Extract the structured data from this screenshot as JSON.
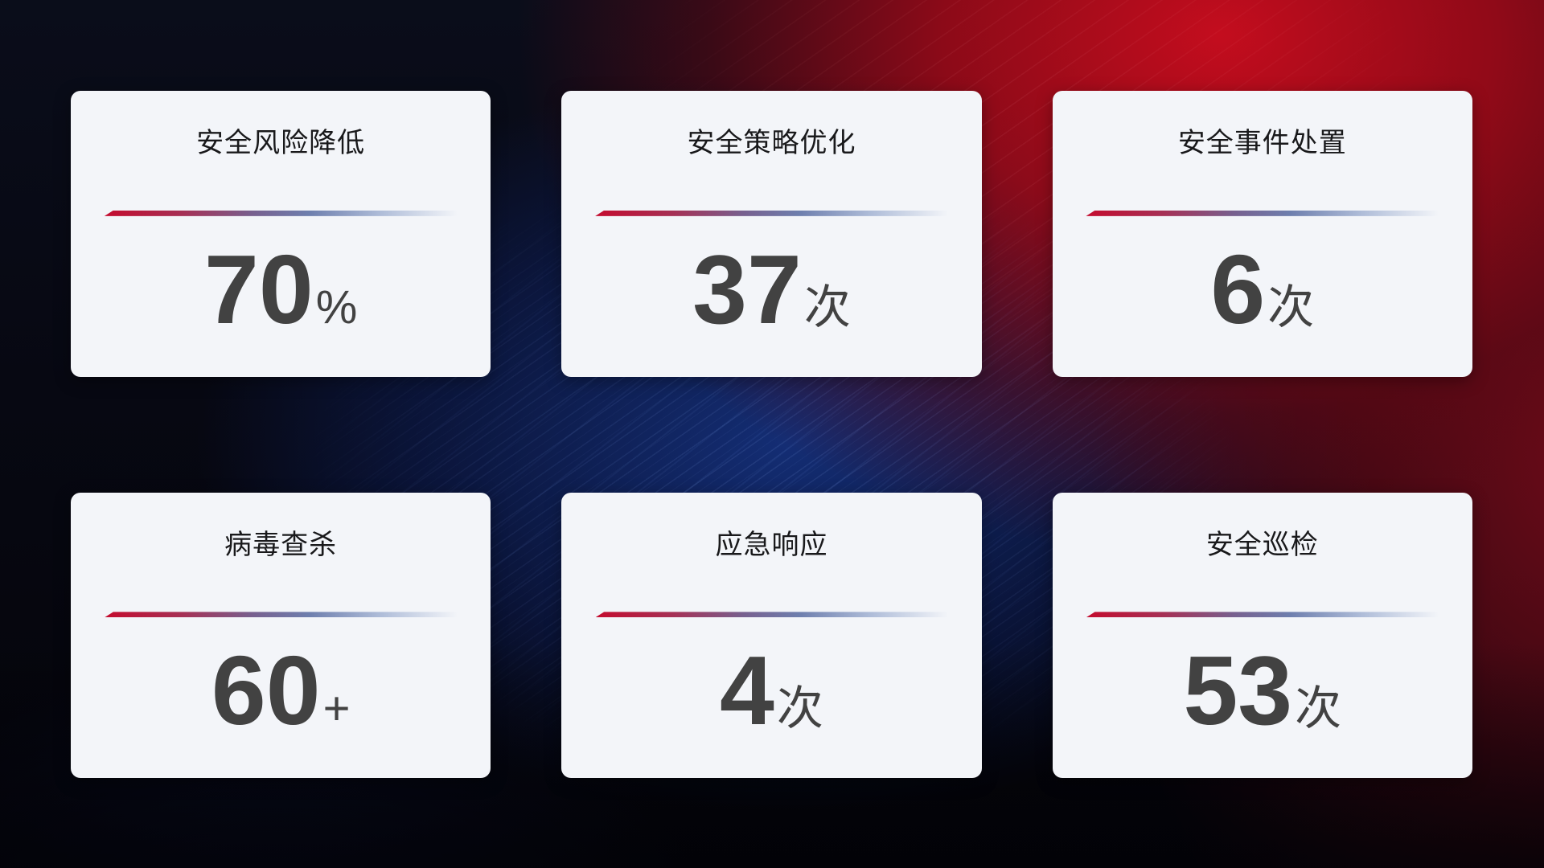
{
  "page": {
    "kind": "security-operations-kpi-dashboard",
    "language": "zh-CN"
  },
  "theme": {
    "css_vars": {
      "card-bg": "#f3f5f9",
      "title-color": "#19191b",
      "value-color": "#424242",
      "divider-start": "#c40b2e",
      "divider-mid": "#77608f",
      "divider-blue": "#6e7fae",
      "divider-end": "#aebcd8"
    },
    "background_accents": {
      "red_bright": "#c50e1f",
      "red_dark": "#5c0812",
      "blue_glow": "#16317e",
      "base_dark": "#06070f"
    }
  },
  "cards": [
    {
      "title": "安全风险降低",
      "value": "70",
      "unit": "%"
    },
    {
      "title": "安全策略优化",
      "value": "37",
      "unit": "次"
    },
    {
      "title": "安全事件处置",
      "value": "6",
      "unit": "次"
    },
    {
      "title": "病毒查杀",
      "value": "60",
      "unit": "+"
    },
    {
      "title": "应急响应",
      "value": "4",
      "unit": "次"
    },
    {
      "title": "安全巡检",
      "value": "53",
      "unit": "次"
    }
  ]
}
